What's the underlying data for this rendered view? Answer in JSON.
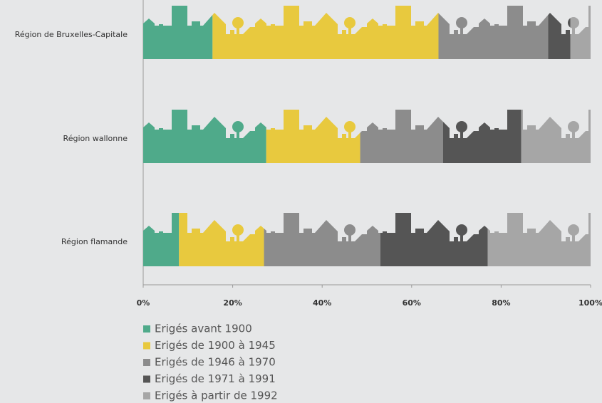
{
  "chart_data": {
    "type": "bar",
    "orientation": "horizontal",
    "stacked": true,
    "categories": [
      "Région de Bruxelles-Capitale",
      "Région wallonne",
      "Région flamande"
    ],
    "series": [
      {
        "name": "Erigés avant 1900",
        "color": "#4faa8a",
        "values": [
          15.5,
          27.5,
          8
        ]
      },
      {
        "name": "Erigés de 1900 à 1945",
        "color": "#e8c93e",
        "values": [
          50.5,
          21,
          19
        ]
      },
      {
        "name": "Erigés de 1946 à 1970",
        "color": "#8c8c8c",
        "values": [
          24.5,
          18.5,
          26
        ]
      },
      {
        "name": "Erigés de 1971 à 1991",
        "color": "#555555",
        "values": [
          5,
          17.5,
          24
        ]
      },
      {
        "name": "Erigés à partir de 1992",
        "color": "#a6a6a6",
        "values": [
          4.5,
          15.5,
          23
        ]
      }
    ],
    "xlim": [
      0,
      100
    ],
    "xticks": [
      {
        "value": 0,
        "label": "0%"
      },
      {
        "value": 20,
        "label": "20%"
      },
      {
        "value": 40,
        "label": "40%"
      },
      {
        "value": 60,
        "label": "60%"
      },
      {
        "value": 80,
        "label": "80%"
      },
      {
        "value": 100,
        "label": "100%"
      }
    ]
  }
}
